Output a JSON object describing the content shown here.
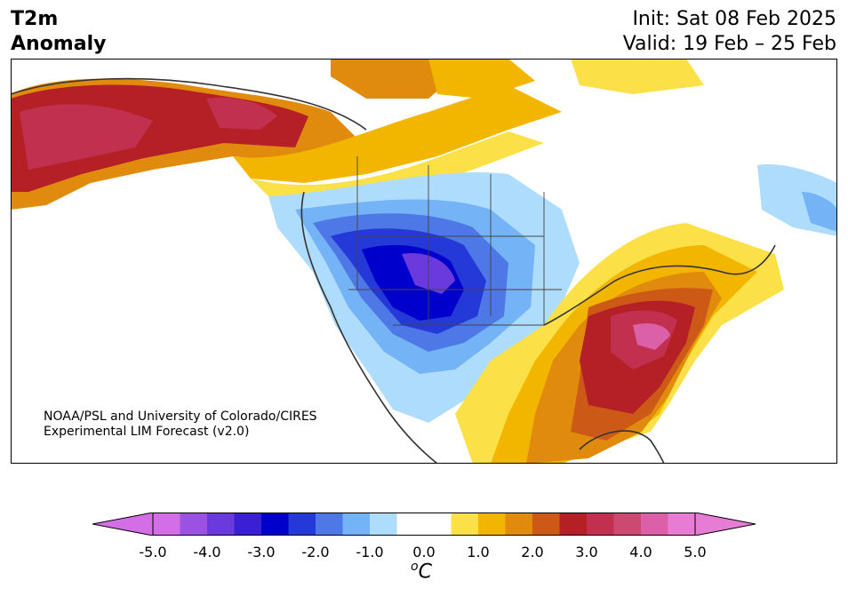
{
  "title": {
    "variable": "T2m",
    "subtitle": "Anomaly",
    "init": "Init: Sat 08 Feb 2025",
    "valid": "Valid: 19 Feb – 25 Feb"
  },
  "credit": {
    "line1": "NOAA/PSL and University of Colorado/CIRES",
    "line2": "Experimental LIM Forecast (v2.0)"
  },
  "colorbar": {
    "unit": "C",
    "unit_prefix": "o",
    "ticks": [
      "-5.0",
      "-4.0",
      "-3.0",
      "-2.0",
      "-1.0",
      "0.0",
      "1.0",
      "2.0",
      "3.0",
      "4.0",
      "5.0"
    ],
    "min": -5.0,
    "max": 5.0,
    "colors": [
      "#d46ee6",
      "#9c52e0",
      "#6a3adc",
      "#3b1fd3",
      "#0000cc",
      "#2439d8",
      "#4d78e6",
      "#74b3f5",
      "#aedcfc",
      "#ffffff",
      "#ffffff",
      "#fce048",
      "#f2b600",
      "#e08a0e",
      "#cc5a16",
      "#b52027",
      "#c1304e",
      "#cc4a72",
      "#dc60a8",
      "#e67cd4"
    ],
    "under_color": "#d46ee6",
    "over_color": "#e67cd4"
  },
  "map_anomaly_regions": {
    "alaska": "warm 3.0 to 4.5",
    "canadian_rockies_and_prairies": "warm 1.0 to 2.5",
    "western_us_and_northern_plains": "cold -1.0 to -3.5",
    "southeast_us": "warm 2.0 to 4.0",
    "labrador": "cold -0.5 to -1.0"
  }
}
